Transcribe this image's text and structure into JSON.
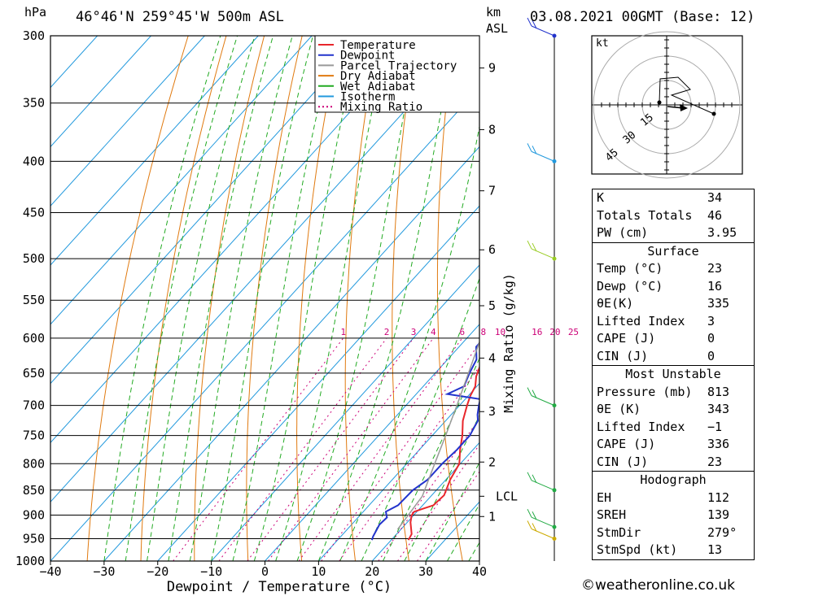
{
  "header": {
    "p_unit": "hPa",
    "location": "46°46'N  259°45'W  500m  ASL",
    "km_label": "km",
    "asl_label": "ASL",
    "datetime": "03.08.2021  00GMT  (Base: 12)"
  },
  "legend": [
    {
      "label": "Temperature",
      "color": "#e8262b"
    },
    {
      "label": "Dewpoint",
      "color": "#2233cc"
    },
    {
      "label": "Parcel Trajectory",
      "color": "#999999"
    },
    {
      "label": "Dry Adiabat",
      "color": "#e07a10"
    },
    {
      "label": "Wet Adiabat",
      "color": "#22aa22"
    },
    {
      "label": "Isotherm",
      "color": "#2299dd"
    },
    {
      "label": "Mixing Ratio",
      "color": "#cc0077"
    }
  ],
  "chart_data": {
    "type": "line",
    "xlabel": "Dewpoint / Temperature (°C)",
    "ylabel": "hPa",
    "mixing_ratio_axis_label": "Mixing Ratio (g/kg)",
    "xlim": [
      -40,
      40
    ],
    "plim": [
      1000,
      300
    ],
    "x_ticks": [
      "−40",
      "−30",
      "−20",
      "−10",
      "0",
      "10",
      "20",
      "30",
      "40"
    ],
    "pressure_levels": [
      300,
      350,
      400,
      450,
      500,
      550,
      600,
      650,
      700,
      750,
      800,
      850,
      900,
      950,
      1000
    ],
    "height_km": [
      {
        "km": "1",
        "p": 903
      },
      {
        "km": "2",
        "p": 797
      },
      {
        "km": "3",
        "p": 710
      },
      {
        "km": "4",
        "p": 628
      },
      {
        "km": "5",
        "p": 557
      },
      {
        "km": "6",
        "p": 490
      },
      {
        "km": "7",
        "p": 428
      },
      {
        "km": "8",
        "p": 372
      },
      {
        "km": "9",
        "p": 323
      }
    ],
    "lcl_label": "LCL",
    "lcl_p": 862,
    "mixing_ratio_labels": [
      "1",
      "2",
      "3",
      "4",
      "6",
      "8",
      "10",
      "16",
      "20",
      "25"
    ],
    "mixing_ratio_values": [
      1,
      2,
      3,
      4,
      6,
      8,
      10,
      16,
      20,
      25
    ],
    "mixing_ratio_label_p": 600,
    "series": [
      {
        "name": "Temperature",
        "color": "#e8262b",
        "points": [
          [
            953,
            23.2
          ],
          [
            940,
            22.8
          ],
          [
            915,
            20.6
          ],
          [
            900,
            19.6
          ],
          [
            893,
            19.5
          ],
          [
            888,
            20.4
          ],
          [
            880,
            22.0
          ],
          [
            860,
            22.3
          ],
          [
            830,
            20.8
          ],
          [
            800,
            19.8
          ],
          [
            775,
            17.6
          ],
          [
            750,
            15.6
          ],
          [
            725,
            13.2
          ],
          [
            700,
            11.4
          ],
          [
            685,
            10.4
          ],
          [
            670,
            9.7
          ],
          [
            655,
            8.2
          ],
          [
            640,
            7.2
          ],
          [
            625,
            5.8
          ],
          [
            600,
            3.2
          ],
          [
            597,
            5.0
          ],
          [
            580,
            3.6
          ],
          [
            560,
            1.8
          ],
          [
            550,
            0.6
          ],
          [
            520,
            -2.6
          ],
          [
            500,
            -5.0
          ],
          [
            450,
            -10.8
          ],
          [
            420,
            -15.0
          ],
          [
            400,
            -18.2
          ],
          [
            375,
            -22.6
          ],
          [
            355,
            -26.0
          ],
          [
            330,
            -30.0
          ],
          [
            315,
            -33.5
          ],
          [
            300,
            -36.2
          ]
        ]
      },
      {
        "name": "Dewpoint",
        "color": "#2233cc",
        "points": [
          [
            953,
            16.4
          ],
          [
            945,
            16.0
          ],
          [
            920,
            15.2
          ],
          [
            905,
            15.4
          ],
          [
            893,
            14.2
          ],
          [
            880,
            15.4
          ],
          [
            850,
            15.6
          ],
          [
            830,
            16.6
          ],
          [
            800,
            16.6
          ],
          [
            775,
            17.0
          ],
          [
            750,
            17.0
          ],
          [
            735,
            16.4
          ],
          [
            725,
            16.0
          ],
          [
            715,
            14.9
          ],
          [
            700,
            13.6
          ],
          [
            690,
            12.8
          ],
          [
            682,
            5.8
          ],
          [
            670,
            7.6
          ],
          [
            650,
            6.4
          ],
          [
            630,
            5.4
          ],
          [
            612,
            3.2
          ],
          [
            602,
            3.2
          ],
          [
            590,
            2.2
          ],
          [
            560,
            -0.6
          ],
          [
            550,
            -1.6
          ],
          [
            500,
            -8.0
          ],
          [
            455,
            -12.8
          ],
          [
            425,
            -15.0
          ],
          [
            400,
            -18.0
          ],
          [
            375,
            -18.2
          ],
          [
            360,
            -22.6
          ],
          [
            340,
            -27.0
          ],
          [
            322,
            -32.0
          ],
          [
            308,
            -38.0
          ],
          [
            300,
            -38.0
          ]
        ]
      },
      {
        "name": "Parcel Trajectory",
        "color": "#999999",
        "points": [
          [
            930,
            19.4
          ],
          [
            862,
            18.4
          ],
          [
            800,
            15.2
          ],
          [
            750,
            12.5
          ],
          [
            700,
            9.5
          ],
          [
            650,
            6.2
          ],
          [
            600,
            2.6
          ],
          [
            550,
            -1.8
          ],
          [
            500,
            -6.8
          ],
          [
            450,
            -12.4
          ],
          [
            400,
            -18.6
          ],
          [
            350,
            -26.5
          ],
          [
            300,
            -35.2
          ]
        ]
      }
    ]
  },
  "hodograph": {
    "unit": "kt",
    "rings": [
      "15",
      "30",
      "45"
    ]
  },
  "indices": {
    "rows": [
      {
        "label": "K",
        "value": "34"
      },
      {
        "label": "Totals Totals",
        "value": "46"
      },
      {
        "label": "PW (cm)",
        "value": "3.95"
      }
    ]
  },
  "surface": {
    "title": "Surface",
    "rows": [
      {
        "label": "Temp (°C)",
        "value": "23"
      },
      {
        "label": "Dewp (°C)",
        "value": "16"
      },
      {
        "label": "θE(K)",
        "value": "335"
      },
      {
        "label": "Lifted Index",
        "value": "3"
      },
      {
        "label": "CAPE (J)",
        "value": "0"
      },
      {
        "label": "CIN (J)",
        "value": "0"
      }
    ]
  },
  "most_unstable": {
    "title": "Most Unstable",
    "rows": [
      {
        "label": "Pressure (mb)",
        "value": "813"
      },
      {
        "label": "θE (K)",
        "value": "343"
      },
      {
        "label": "Lifted Index",
        "value": "−1"
      },
      {
        "label": "CAPE (J)",
        "value": "336"
      },
      {
        "label": "CIN (J)",
        "value": "23"
      }
    ]
  },
  "hodograph_stats": {
    "title": "Hodograph",
    "rows": [
      {
        "label": "EH",
        "value": "112"
      },
      {
        "label": "SREH",
        "value": "139"
      },
      {
        "label": "StmDir",
        "value": "279°"
      },
      {
        "label": "StmSpd (kt)",
        "value": "13"
      }
    ]
  },
  "credit": "©weatheronline.co.uk"
}
